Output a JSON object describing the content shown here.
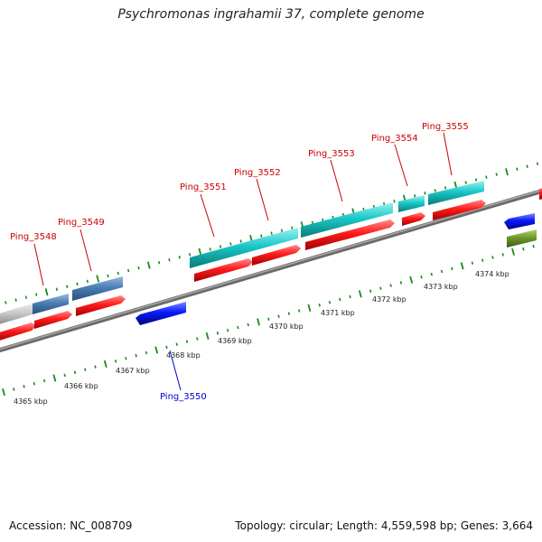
{
  "title": "Psychromonas ingrahamii 37, complete genome",
  "footer": {
    "accession": "Accession: NC_008709",
    "summary": "Topology: circular; Length: 4,559,598 bp; Genes: 3,664"
  },
  "colors": {
    "backbone": "#8a8a8a",
    "tick": "#1a8a1a",
    "label_red": "#cc0000",
    "label_blue": "#0000cc",
    "cds_red": "#ff1a1a",
    "cds_cyan": "#1ac8c8",
    "cds_steel": "#4a7fb5",
    "cds_blue": "#0a1aff",
    "cds_olive": "#6f9a2a",
    "cds_grey": "#c8c8c8"
  },
  "scale_labels": [
    "4365 kbp",
    "4366 kbp",
    "4367 kbp",
    "4368 kbp",
    "4369 kbp",
    "4370 kbp",
    "4371 kbp",
    "4372 kbp",
    "4373 kbp",
    "4374 kbp"
  ],
  "gene_labels": [
    {
      "text": "Ping_3548",
      "color": "red"
    },
    {
      "text": "Ping_3549",
      "color": "red"
    },
    {
      "text": "Ping_3550",
      "color": "blue"
    },
    {
      "text": "Ping_3551",
      "color": "red"
    },
    {
      "text": "Ping_3552",
      "color": "red"
    },
    {
      "text": "Ping_3553",
      "color": "red"
    },
    {
      "text": "Ping_3554",
      "color": "red"
    },
    {
      "text": "Ping_3555",
      "color": "red"
    }
  ]
}
